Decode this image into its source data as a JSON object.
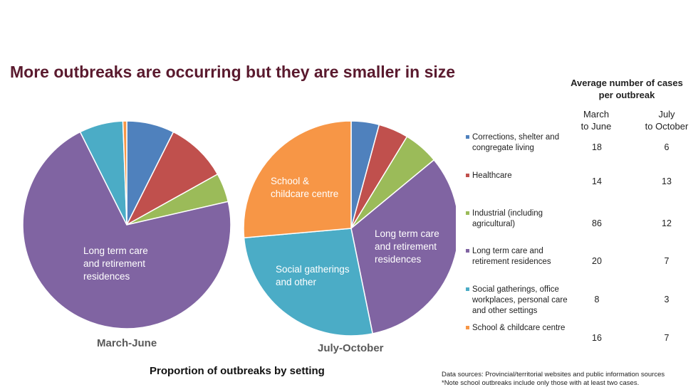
{
  "title": "More outbreaks are occurring but they are smaller in size",
  "subtitle": "Proportion of outbreaks by setting",
  "table": {
    "heading_line1": "Average number of cases",
    "heading_line2": "per outbreak",
    "col1_line1": "March",
    "col1_line2": "to June",
    "col2_line1": "July",
    "col2_line2": "to October",
    "rows": [
      {
        "label1": "Corrections, shelter and",
        "label2": "congregate living",
        "label3": "",
        "col1": "18",
        "col2": "6",
        "color": "#4f81bd"
      },
      {
        "label1": "Healthcare",
        "label2": "",
        "label3": "",
        "col1": "14",
        "col2": "13",
        "color": "#c0504d"
      },
      {
        "label1": "Industrial (including",
        "label2": "agricultural)",
        "label3": "",
        "col1": "86",
        "col2": "12",
        "color": "#9bbb59"
      },
      {
        "label1": "Long term care and",
        "label2": "retirement residences",
        "label3": "",
        "col1": "20",
        "col2": "7",
        "color": "#8064a2"
      },
      {
        "label1": "Social gatherings, office",
        "label2": "workplaces, personal care",
        "label3": "and other settings",
        "col1": "8",
        "col2": "3",
        "color": "#4bacc6"
      },
      {
        "label1": "School & childcare centre",
        "label2": "",
        "label3": "",
        "col1": "16",
        "col2": "7",
        "color": "#f79646"
      }
    ]
  },
  "notes": {
    "line1": "Data sources: Provincial/territorial websites and public information sources",
    "line2": "*Note school outbreaks include only those with at least two cases."
  },
  "chart_data": [
    {
      "type": "pie",
      "title": "March-June",
      "categories": [
        "Corrections, shelter and congregate living",
        "Healthcare",
        "Industrial (including agricultural)",
        "Long term care and retirement residences",
        "Social gatherings, office workplaces, personal care and other settings",
        "School & childcare centre"
      ],
      "values": [
        7.4,
        9.5,
        4.5,
        71.2,
        6.8,
        0.6
      ],
      "colors": [
        "#4f81bd",
        "#c0504d",
        "#9bbb59",
        "#8064a2",
        "#4bacc6",
        "#f79646"
      ],
      "slice_labels": {
        "ltc_line1": "Long term care",
        "ltc_line2": "and retirement",
        "ltc_line3": "residences"
      }
    },
    {
      "type": "pie",
      "title": "July-October",
      "categories": [
        "Corrections, shelter and congregate living",
        "Healthcare",
        "Industrial (including agricultural)",
        "Long term care and retirement residences",
        "Social gatherings, office workplaces, personal care and other settings",
        "School & childcare centre"
      ],
      "values": [
        4.2,
        4.5,
        5.3,
        32.8,
        26.8,
        26.4
      ],
      "colors": [
        "#4f81bd",
        "#c0504d",
        "#9bbb59",
        "#8064a2",
        "#4bacc6",
        "#f79646"
      ],
      "slice_labels": {
        "ltc_line1": "Long term care",
        "ltc_line2": "and retirement",
        "ltc_line3": "residences",
        "social_line1": "Social gatherings",
        "social_line2": "and other",
        "school_line1": "School &",
        "school_line2": "childcare centre"
      }
    }
  ]
}
